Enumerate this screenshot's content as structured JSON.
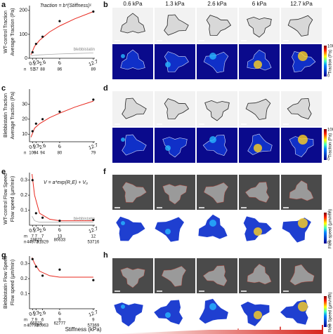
{
  "panels": {
    "letters": [
      "a",
      "b",
      "c",
      "d",
      "e",
      "f",
      "g",
      "h"
    ],
    "columns": [
      "0.6 kPa",
      "1.3 kPa",
      "2.6 kPa",
      "6 kPa",
      "12.7 kPa"
    ],
    "traction_colorbar": {
      "label": "Traction (Pa)",
      "min": 0,
      "max": 1000
    },
    "flow_colorbar": {
      "label": "Flow speed (µm/min)",
      "min": 0,
      "max": 2
    },
    "flow_colorbar_2": {
      "label": "Flow Speed (µm/min)",
      "min": 0,
      "max": 1
    }
  },
  "chart_data": [
    {
      "type": "scatter",
      "side_label": "WT-control Traction",
      "ylabel": "Average Traction (Pa)",
      "annotation": "Traction = b*(Stiffness)ᶜ",
      "x": [
        0.6,
        1.3,
        2.6,
        6,
        12.7
      ],
      "values": [
        25,
        60,
        90,
        155,
        195
      ],
      "color": "#111111",
      "fit": {
        "x": [
          0.3,
          1,
          2,
          4,
          6,
          9,
          12.7
        ],
        "values": [
          15,
          50,
          75,
          110,
          135,
          165,
          195
        ],
        "color": "#e8281e"
      },
      "control": {
        "name": "blebbistatin",
        "x": [
          0.3,
          1,
          2,
          4,
          6,
          9,
          12.7
        ],
        "values": [
          10,
          12,
          14,
          16,
          18,
          20,
          22
        ],
        "color": "#aaaaaa"
      },
      "xlim": [
        0,
        13
      ],
      "xticks": [
        0.6,
        1.3,
        2.6,
        6,
        12.7
      ],
      "ylim": [
        0,
        220
      ],
      "yticks": [
        0,
        100,
        200
      ],
      "n_label": "n",
      "n_counts": [
        51,
        57,
        88,
        86,
        89
      ]
    },
    {
      "type": "scatter",
      "side_label": "Blebbistatin Traction",
      "ylabel": "Average Traction (Pa)",
      "x": [
        0.6,
        1.3,
        2.6,
        6,
        12.7
      ],
      "values": [
        12,
        17,
        20,
        25,
        33
      ],
      "color": "#111111",
      "fit": {
        "x": [
          0.3,
          1,
          2,
          4,
          6,
          9,
          12.7
        ],
        "values": [
          8,
          14,
          17,
          21,
          24,
          28,
          32
        ],
        "color": "#e8281e"
      },
      "xlim": [
        0,
        13
      ],
      "xticks": [
        0.6,
        1.3,
        2.6,
        6,
        12.7
      ],
      "ylim": [
        5,
        40
      ],
      "yticks": [
        10,
        20,
        30
      ],
      "n_label": "n",
      "n_counts": [
        100,
        94,
        94,
        80,
        79
      ]
    },
    {
      "type": "scatter",
      "side_label": "WT-control Flow Speed",
      "ylabel": "Flow speed (µm/min)",
      "annotation": "V = a*exp(R꜀E) + V₀",
      "x": [
        0.6,
        1.3,
        2.6,
        6,
        12.7
      ],
      "values": [
        0.3,
        0.08,
        0.05,
        0.03,
        0.035
      ],
      "color": "#111111",
      "fit": {
        "x": [
          0.5,
          1,
          2,
          4,
          6,
          9,
          12.7
        ],
        "values": [
          0.34,
          0.2,
          0.08,
          0.04,
          0.03,
          0.03,
          0.03
        ],
        "color": "#e8281e"
      },
      "control": {
        "name": "blebbistatin",
        "x": [
          0.5,
          1,
          2,
          4,
          6,
          9,
          12.7
        ],
        "values": [
          0.06,
          0.03,
          0.02,
          0.02,
          0.02,
          0.02,
          0.02
        ],
        "color": "#aaaaaa"
      },
      "xlim": [
        0,
        13
      ],
      "xticks": [
        0.6,
        1.3,
        2.6,
        6,
        12.7
      ],
      "ylim": [
        0,
        0.35
      ],
      "yticks": [
        0.1,
        0.2,
        0.3
      ],
      "m_label": "m",
      "m_counts": [
        7,
        7,
        7,
        13,
        12
      ],
      "n_label": "n",
      "n_counts": [
        44873,
        19623,
        31829,
        80633,
        53716
      ]
    },
    {
      "type": "scatter",
      "side_label": "Blebbistatin Flow Speed",
      "ylabel": "Flow speed (µm/min)",
      "xlabel": "Stiffness (kPa)",
      "x": [
        0.6,
        1.3,
        2.6,
        6,
        12.7
      ],
      "values": [
        0.33,
        0.28,
        0.22,
        0.26,
        0.19
      ],
      "color": "#111111",
      "fit": {
        "x": [
          0.5,
          1,
          2,
          4,
          6,
          9,
          12.7
        ],
        "values": [
          0.34,
          0.3,
          0.25,
          0.22,
          0.21,
          0.21,
          0.21
        ],
        "color": "#e8281e"
      },
      "xlim": [
        0,
        13
      ],
      "xticks": [
        0.6,
        1.3,
        2.6,
        6,
        12.7
      ],
      "ylim": [
        0,
        0.35
      ],
      "yticks": [
        0.1,
        0.2,
        0.3
      ],
      "m_label": "m",
      "m_counts": [
        7,
        9,
        6,
        9,
        9
      ],
      "n_label": "n",
      "n_counts": [
        40798,
        66823,
        30963,
        62777,
        57369
      ]
    }
  ]
}
